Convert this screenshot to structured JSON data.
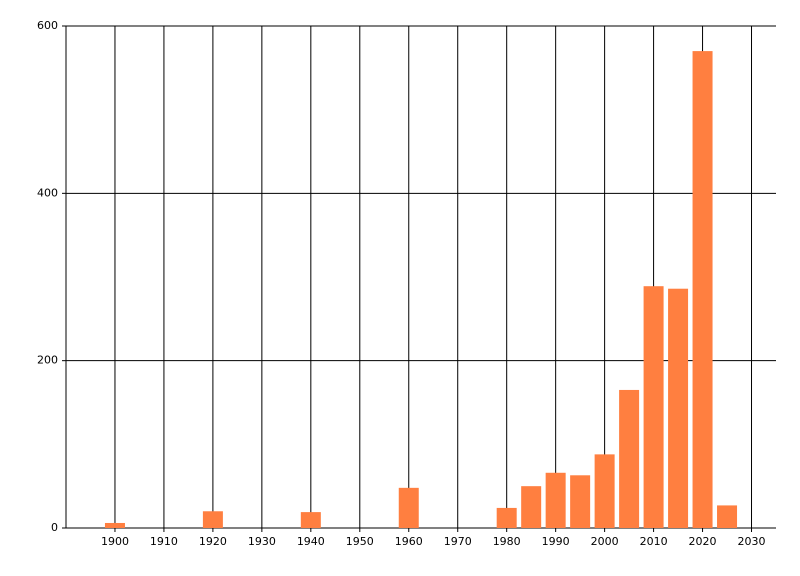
{
  "chart_data": {
    "type": "bar",
    "x": [
      1900,
      1920,
      1940,
      1960,
      1980,
      1985,
      1990,
      1995,
      2000,
      2005,
      2010,
      2015,
      2020,
      2025
    ],
    "values": [
      6,
      20,
      19,
      48,
      24,
      50,
      66,
      63,
      88,
      165,
      289,
      286,
      570,
      27
    ],
    "color": "#ff7f40",
    "xlim": [
      1890,
      2035
    ],
    "ylim": [
      0,
      600
    ],
    "xticks": [
      1900,
      1910,
      1920,
      1930,
      1940,
      1950,
      1960,
      1970,
      1980,
      1990,
      2000,
      2010,
      2020,
      2030
    ],
    "yticks": [
      0,
      200,
      400,
      600
    ],
    "grid": true
  }
}
